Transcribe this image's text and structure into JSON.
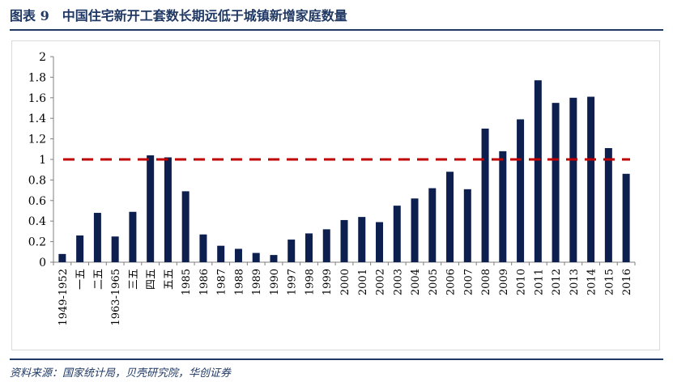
{
  "figure": {
    "number": "图表 9",
    "title": "中国住宅新开工套数长期远低于城镇新增家庭数量",
    "source": "资料来源：国家统计局，贝壳研究院，华创证券"
  },
  "colors": {
    "title": "#1f3864",
    "bar": "#0c1f4f",
    "reference_line": "#c00000",
    "axis": "#7f7f7f",
    "text": "#000000"
  },
  "chart_data": {
    "type": "bar",
    "categories": [
      "1949-1952",
      "一五",
      "二五",
      "1963-1965",
      "三五",
      "四五",
      "五五",
      "1985",
      "1986",
      "1987",
      "1988",
      "1989",
      "1990",
      "1997",
      "1998",
      "1999",
      "2000",
      "2001",
      "2002",
      "2003",
      "2004",
      "2005",
      "2006",
      "2007",
      "2008",
      "2009",
      "2010",
      "2011",
      "2012",
      "2013",
      "2014",
      "2015",
      "2016"
    ],
    "values": [
      0.08,
      0.26,
      0.48,
      0.25,
      0.49,
      1.04,
      1.02,
      0.69,
      0.27,
      0.16,
      0.13,
      0.09,
      0.07,
      0.22,
      0.28,
      0.32,
      0.41,
      0.44,
      0.39,
      0.55,
      0.62,
      0.72,
      0.88,
      0.71,
      1.3,
      1.08,
      1.39,
      1.77,
      1.55,
      1.6,
      1.61,
      1.11,
      0.86
    ],
    "reference_line": 1,
    "ylim": [
      0,
      2
    ],
    "yticks": [
      "0",
      "0.2",
      "0.4",
      "0.6",
      "0.8",
      "1",
      "1.2",
      "1.4",
      "1.6",
      "1.8",
      "2"
    ],
    "grid": false,
    "legend": "none"
  }
}
